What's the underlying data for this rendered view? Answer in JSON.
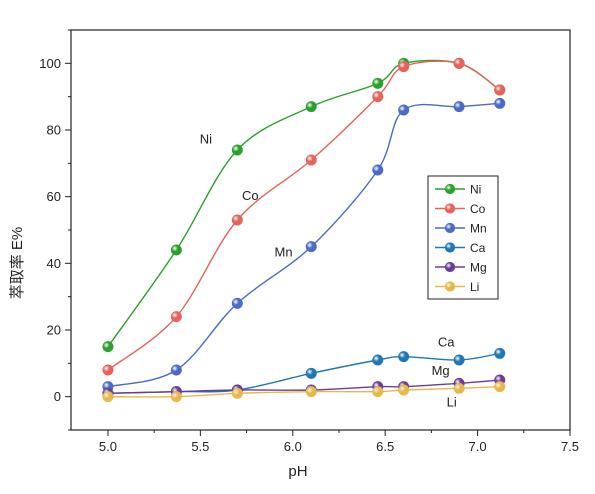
{
  "chart_data": {
    "type": "line",
    "xlabel": "pH",
    "ylabel": "萃取率  E%",
    "xlim": [
      4.8,
      7.5
    ],
    "ylim": [
      -10,
      110
    ],
    "xticks": [
      5.0,
      5.5,
      6.0,
      6.5,
      7.0,
      7.5
    ],
    "xtick_labels": [
      "5.0",
      "5.5",
      "6.0",
      "6.5",
      "7.0",
      "7.5"
    ],
    "yticks": [
      0,
      20,
      40,
      60,
      80,
      100
    ],
    "ytick_labels": [
      "0",
      "20",
      "40",
      "60",
      "80",
      "100"
    ],
    "grid": false,
    "legend_position": "right",
    "series": [
      {
        "name": "Ni",
        "color": "#2ca02c",
        "label": "Ni",
        "x": [
          5.0,
          5.37,
          5.7,
          6.1,
          6.46,
          6.6,
          6.9,
          7.12
        ],
        "y": [
          15,
          44,
          74,
          87,
          94,
          100,
          100,
          92
        ]
      },
      {
        "name": "Co",
        "color": "#e8615a",
        "label": "Co",
        "x": [
          5.0,
          5.37,
          5.7,
          6.1,
          6.46,
          6.6,
          6.9,
          7.12
        ],
        "y": [
          8,
          24,
          53,
          71,
          90,
          99,
          100,
          92
        ]
      },
      {
        "name": "Mn",
        "color": "#4a6bc7",
        "label": "Mn",
        "x": [
          5.0,
          5.37,
          5.7,
          6.1,
          6.46,
          6.6,
          6.9,
          7.12
        ],
        "y": [
          3,
          8,
          28,
          45,
          68,
          86,
          87,
          88
        ]
      },
      {
        "name": "Ca",
        "color": "#1f77b4",
        "label": "Ca",
        "x": [
          5.0,
          5.37,
          5.7,
          6.1,
          6.46,
          6.6,
          6.9,
          7.12
        ],
        "y": [
          1,
          1.5,
          2,
          7,
          11,
          12,
          11,
          13
        ]
      },
      {
        "name": "Mg",
        "color": "#6a3d9a",
        "label": "Mg",
        "x": [
          5.0,
          5.37,
          5.7,
          6.1,
          6.46,
          6.6,
          6.9,
          7.12
        ],
        "y": [
          1,
          1.5,
          2,
          2,
          3,
          3,
          4,
          5
        ]
      },
      {
        "name": "Li",
        "color": "#e8b94a",
        "label": "Li",
        "x": [
          5.0,
          5.37,
          5.7,
          6.1,
          6.46,
          6.6,
          6.9,
          7.12
        ],
        "y": [
          0,
          0,
          1,
          1.5,
          1.5,
          2,
          2.5,
          3
        ]
      }
    ]
  }
}
